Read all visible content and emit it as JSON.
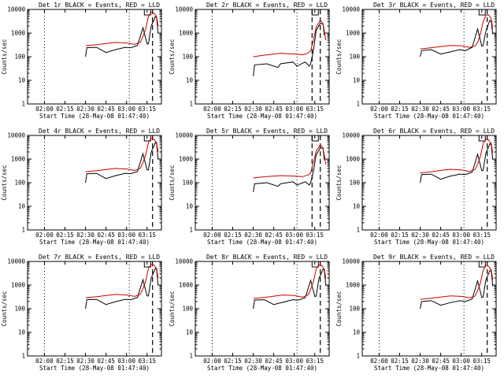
{
  "figure": {
    "background": "#ffffff",
    "event_color": "#000000",
    "lld_color": "#cc0000"
  },
  "chart_data": [
    {
      "type": "line",
      "detector": "Det 1r",
      "title": "Det 1r BLACK = Events, RED = LLD",
      "xlabel": "Start Time (28-May-08 01:47:40)",
      "ylabel": "Counts/sec",
      "yscale": "log",
      "ylim": [
        1,
        10000
      ],
      "xlim": [
        "01:47:40",
        "03:25:30"
      ],
      "x_ticks": [
        "02:00",
        "02:15",
        "02:30",
        "02:45",
        "03:00",
        "03:15"
      ],
      "y_ticks": [
        "1",
        "10",
        "100",
        "1000",
        "10000"
      ],
      "vertical_dotted_lines": [
        "02:00",
        "03:02"
      ],
      "vertical_dashed_lines": [
        "03:19"
      ],
      "series": [
        {
          "name": "Events",
          "color": "#000000",
          "x": [
            "02:30",
            "02:31",
            "02:38",
            "02:45",
            "02:52",
            "02:59",
            "03:03",
            "03:08",
            "03:12",
            "03:15",
            "03:16",
            "03:18",
            "03:20",
            "03:21",
            "03:22",
            "03:23"
          ],
          "y": [
            100,
            240,
            250,
            150,
            200,
            250,
            240,
            300,
            1700,
            350,
            350,
            2000,
            3500,
            5000,
            4500,
            1000
          ]
        },
        {
          "name": "LLD",
          "color": "#cc0000",
          "x": [
            "02:30",
            "02:38",
            "02:45",
            "02:52",
            "03:00",
            "03:06",
            "03:10",
            "03:12",
            "03:14",
            "03:16",
            "03:18",
            "03:20",
            "03:22",
            "03:23"
          ],
          "y": [
            290,
            320,
            360,
            400,
            380,
            330,
            400,
            700,
            1500,
            5000,
            7500,
            7000,
            5000,
            2000
          ]
        }
      ]
    },
    {
      "type": "line",
      "detector": "Det 2r",
      "title": "Det 2r BLACK = Events, RED = LLD",
      "xlabel": "Start Time (28-May-08 01:47:40)",
      "ylabel": "Counts/sec",
      "yscale": "log",
      "ylim": [
        1,
        10000
      ],
      "xlim": [
        "01:47:40",
        "03:25:30"
      ],
      "x_ticks": [
        "02:00",
        "02:15",
        "02:30",
        "02:45",
        "03:00",
        "03:15"
      ],
      "y_ticks": [
        "1",
        "10",
        "100",
        "1000",
        "10000"
      ],
      "vertical_dotted_lines": [
        "02:00",
        "03:02"
      ],
      "vertical_dashed_lines": [
        "03:13",
        "03:19"
      ],
      "series": [
        {
          "name": "Events",
          "color": "#000000",
          "x": [
            "02:30",
            "02:31",
            "02:40",
            "02:48",
            "02:50",
            "02:59",
            "03:02",
            "03:08",
            "03:11",
            "03:12",
            "03:14",
            "03:16",
            "03:19",
            "03:21",
            "03:22"
          ],
          "y": [
            15,
            45,
            50,
            35,
            50,
            60,
            40,
            60,
            40,
            50,
            180,
            1300,
            2600,
            2400,
            800
          ]
        },
        {
          "name": "LLD",
          "color": "#cc0000",
          "x": [
            "02:30",
            "02:40",
            "02:50",
            "03:00",
            "03:06",
            "03:10",
            "03:12",
            "03:14",
            "03:16",
            "03:19",
            "03:21",
            "03:22",
            "03:23"
          ],
          "y": [
            100,
            120,
            140,
            130,
            120,
            140,
            180,
            500,
            1800,
            3500,
            2500,
            1200,
            500
          ]
        }
      ]
    },
    {
      "type": "line",
      "detector": "Det 3r",
      "title": "Det 3r BLACK = Events, RED = LLD",
      "xlabel": "Start Time (28-May-08 01:47:40)",
      "ylabel": "Counts/sec",
      "yscale": "log",
      "ylim": [
        1,
        10000
      ],
      "xlim": [
        "01:47:40",
        "03:25:30"
      ],
      "x_ticks": [
        "02:00",
        "02:15",
        "02:30",
        "02:45",
        "03:00",
        "03:15"
      ],
      "y_ticks": [
        "1",
        "10",
        "100",
        "1000",
        "10000"
      ],
      "vertical_dotted_lines": [
        "02:00",
        "03:02"
      ],
      "vertical_dashed_lines": [
        "03:19"
      ],
      "series": [
        {
          "name": "Events",
          "color": "#000000",
          "x": [
            "02:30",
            "02:31",
            "02:38",
            "02:45",
            "02:52",
            "02:59",
            "03:03",
            "03:08",
            "03:12",
            "03:15",
            "03:16",
            "03:18",
            "03:20",
            "03:21",
            "03:22",
            "03:23"
          ],
          "y": [
            100,
            180,
            200,
            130,
            160,
            200,
            180,
            250,
            1500,
            280,
            300,
            1200,
            2500,
            3500,
            3000,
            900
          ]
        },
        {
          "name": "LLD",
          "color": "#cc0000",
          "x": [
            "02:30",
            "02:38",
            "02:45",
            "02:52",
            "03:00",
            "03:06",
            "03:10",
            "03:12",
            "03:14",
            "03:16",
            "03:18",
            "03:20",
            "03:22",
            "03:23"
          ],
          "y": [
            210,
            240,
            270,
            300,
            290,
            250,
            280,
            400,
            900,
            3000,
            5500,
            6000,
            4000,
            1500
          ]
        }
      ]
    },
    {
      "type": "line",
      "detector": "Det 4r",
      "title": "Det 4r BLACK = Events, RED = LLD",
      "xlabel": "Start Time (28-May-08 01:47:40)",
      "ylabel": "Counts/sec",
      "yscale": "log",
      "ylim": [
        1,
        10000
      ],
      "xlim": [
        "01:47:40",
        "03:25:30"
      ],
      "x_ticks": [
        "02:00",
        "02:15",
        "02:30",
        "02:45",
        "03:00",
        "03:15"
      ],
      "y_ticks": [
        "1",
        "10",
        "100",
        "1000",
        "10000"
      ],
      "vertical_dotted_lines": [
        "02:00",
        "03:02"
      ],
      "vertical_dashed_lines": [
        "03:19"
      ],
      "series": [
        {
          "name": "Events",
          "color": "#000000",
          "x": [
            "02:30",
            "02:31",
            "02:38",
            "02:45",
            "02:52",
            "02:59",
            "03:03",
            "03:08",
            "03:12",
            "03:15",
            "03:16",
            "03:18",
            "03:20",
            "03:21",
            "03:22",
            "03:23"
          ],
          "y": [
            100,
            240,
            250,
            150,
            200,
            250,
            240,
            300,
            1700,
            350,
            350,
            2000,
            3500,
            5000,
            4500,
            1000
          ]
        },
        {
          "name": "LLD",
          "color": "#cc0000",
          "x": [
            "02:30",
            "02:38",
            "02:45",
            "02:52",
            "03:00",
            "03:06",
            "03:10",
            "03:12",
            "03:14",
            "03:16",
            "03:18",
            "03:20",
            "03:22",
            "03:23"
          ],
          "y": [
            290,
            320,
            360,
            400,
            380,
            330,
            400,
            700,
            1500,
            5000,
            7500,
            7000,
            5000,
            2000
          ]
        }
      ]
    },
    {
      "type": "line",
      "detector": "Det 5r",
      "title": "Det 5r BLACK = Events, RED = LLD",
      "xlabel": "Start Time (28-May-08 01:47:40)",
      "ylabel": "Counts/sec",
      "yscale": "log",
      "ylim": [
        1,
        10000
      ],
      "xlim": [
        "01:47:40",
        "03:25:30"
      ],
      "x_ticks": [
        "02:00",
        "02:15",
        "02:30",
        "02:45",
        "03:00",
        "03:15"
      ],
      "y_ticks": [
        "1",
        "10",
        "100",
        "1000",
        "10000"
      ],
      "vertical_dotted_lines": [
        "02:00",
        "03:02"
      ],
      "vertical_dashed_lines": [
        "03:13",
        "03:19"
      ],
      "series": [
        {
          "name": "Events",
          "color": "#000000",
          "x": [
            "02:30",
            "02:31",
            "02:40",
            "02:48",
            "02:50",
            "02:59",
            "03:02",
            "03:08",
            "03:11",
            "03:12",
            "03:14",
            "03:16",
            "03:19",
            "03:21",
            "03:22"
          ],
          "y": [
            40,
            90,
            100,
            70,
            90,
            110,
            80,
            110,
            80,
            100,
            300,
            1500,
            3000,
            2800,
            900
          ]
        },
        {
          "name": "LLD",
          "color": "#cc0000",
          "x": [
            "02:30",
            "02:40",
            "02:50",
            "03:00",
            "03:06",
            "03:10",
            "03:12",
            "03:14",
            "03:16",
            "03:19",
            "03:21",
            "03:22",
            "03:23"
          ],
          "y": [
            160,
            180,
            200,
            190,
            180,
            210,
            260,
            700,
            2200,
            4000,
            3000,
            1400,
            600
          ]
        }
      ]
    },
    {
      "type": "line",
      "detector": "Det 6r",
      "title": "Det 6r BLACK = Events, RED = LLD",
      "xlabel": "Start Time (28-May-08 01:47:40)",
      "ylabel": "Counts/sec",
      "yscale": "log",
      "ylim": [
        1,
        10000
      ],
      "xlim": [
        "01:47:40",
        "03:25:30"
      ],
      "x_ticks": [
        "02:00",
        "02:15",
        "02:30",
        "02:45",
        "03:00",
        "03:15"
      ],
      "y_ticks": [
        "1",
        "10",
        "100",
        "1000",
        "10000"
      ],
      "vertical_dotted_lines": [
        "02:00",
        "03:02"
      ],
      "vertical_dashed_lines": [
        "03:19"
      ],
      "series": [
        {
          "name": "Events",
          "color": "#000000",
          "x": [
            "02:30",
            "02:31",
            "02:38",
            "02:45",
            "02:52",
            "02:59",
            "03:03",
            "03:08",
            "03:12",
            "03:15",
            "03:16",
            "03:18",
            "03:20",
            "03:21",
            "03:22",
            "03:23"
          ],
          "y": [
            100,
            220,
            230,
            140,
            190,
            230,
            220,
            280,
            1600,
            320,
            330,
            1800,
            3200,
            4500,
            4000,
            950
          ]
        },
        {
          "name": "LLD",
          "color": "#cc0000",
          "x": [
            "02:30",
            "02:38",
            "02:45",
            "02:52",
            "03:00",
            "03:06",
            "03:10",
            "03:12",
            "03:14",
            "03:16",
            "03:18",
            "03:20",
            "03:22",
            "03:23"
          ],
          "y": [
            260,
            290,
            330,
            370,
            350,
            300,
            360,
            600,
            1300,
            4500,
            7000,
            6500,
            4500,
            1800
          ]
        }
      ]
    },
    {
      "type": "line",
      "detector": "Det 7r",
      "title": "Det 7r BLACK = Events, RED = LLD",
      "xlabel": "Start Time (28-May-08 01:47:40)",
      "ylabel": "Counts/sec",
      "yscale": "log",
      "ylim": [
        1,
        10000
      ],
      "xlim": [
        "01:47:40",
        "03:25:30"
      ],
      "x_ticks": [
        "02:00",
        "02:15",
        "02:30",
        "02:45",
        "03:00",
        "03:15"
      ],
      "y_ticks": [
        "1",
        "10",
        "100",
        "1000",
        "10000"
      ],
      "vertical_dotted_lines": [
        "02:00",
        "03:02"
      ],
      "vertical_dashed_lines": [
        "03:19"
      ],
      "series": [
        {
          "name": "Events",
          "color": "#000000",
          "x": [
            "02:30",
            "02:31",
            "02:38",
            "02:45",
            "02:52",
            "02:59",
            "03:03",
            "03:08",
            "03:12",
            "03:15",
            "03:16",
            "03:18",
            "03:20",
            "03:21",
            "03:22",
            "03:23"
          ],
          "y": [
            100,
            240,
            250,
            150,
            200,
            250,
            240,
            300,
            1700,
            350,
            350,
            2000,
            3500,
            5000,
            4500,
            1000
          ]
        },
        {
          "name": "LLD",
          "color": "#cc0000",
          "x": [
            "02:30",
            "02:38",
            "02:45",
            "02:52",
            "03:00",
            "03:06",
            "03:10",
            "03:12",
            "03:14",
            "03:16",
            "03:18",
            "03:20",
            "03:22",
            "03:23"
          ],
          "y": [
            290,
            320,
            360,
            400,
            380,
            330,
            400,
            700,
            1500,
            5000,
            7500,
            7000,
            5000,
            2000
          ]
        }
      ]
    },
    {
      "type": "line",
      "detector": "Det 8r",
      "title": "Det 8r BLACK = Events, RED = LLD",
      "xlabel": "Start Time (28-May-08 01:47:40)",
      "ylabel": "Counts/sec",
      "yscale": "log",
      "ylim": [
        1,
        10000
      ],
      "xlim": [
        "01:47:40",
        "03:25:30"
      ],
      "x_ticks": [
        "02:00",
        "02:15",
        "02:30",
        "02:45",
        "03:00",
        "03:15"
      ],
      "y_ticks": [
        "1",
        "10",
        "100",
        "1000",
        "10000"
      ],
      "vertical_dotted_lines": [
        "02:00",
        "03:02"
      ],
      "vertical_dashed_lines": [
        "03:19"
      ],
      "series": [
        {
          "name": "Events",
          "color": "#000000",
          "x": [
            "02:30",
            "02:31",
            "02:38",
            "02:45",
            "02:52",
            "02:59",
            "03:03",
            "03:08",
            "03:12",
            "03:15",
            "03:16",
            "03:18",
            "03:20",
            "03:21",
            "03:22",
            "03:23"
          ],
          "y": [
            100,
            230,
            240,
            150,
            190,
            240,
            230,
            290,
            1600,
            330,
            340,
            1900,
            3300,
            4700,
            4200,
            950
          ]
        },
        {
          "name": "LLD",
          "color": "#cc0000",
          "x": [
            "02:30",
            "02:38",
            "02:45",
            "02:52",
            "03:00",
            "03:06",
            "03:10",
            "03:12",
            "03:14",
            "03:16",
            "03:18",
            "03:20",
            "03:22",
            "03:23"
          ],
          "y": [
            270,
            300,
            340,
            380,
            360,
            310,
            380,
            650,
            1400,
            4800,
            7200,
            6800,
            4800,
            1900
          ]
        }
      ]
    },
    {
      "type": "line",
      "detector": "Det 9r",
      "title": "Det 9r BLACK = Events, RED = LLD",
      "xlabel": "Start Time (28-May-08 01:47:40)",
      "ylabel": "Counts/sec",
      "yscale": "log",
      "ylim": [
        1,
        10000
      ],
      "xlim": [
        "01:47:40",
        "03:25:30"
      ],
      "x_ticks": [
        "02:00",
        "02:15",
        "02:30",
        "02:45",
        "03:00",
        "03:15"
      ],
      "y_ticks": [
        "1",
        "10",
        "100",
        "1000",
        "10000"
      ],
      "vertical_dotted_lines": [
        "02:00",
        "03:02"
      ],
      "vertical_dashed_lines": [
        "03:19"
      ],
      "series": [
        {
          "name": "Events",
          "color": "#000000",
          "x": [
            "02:30",
            "02:31",
            "02:38",
            "02:45",
            "02:52",
            "02:59",
            "03:03",
            "03:08",
            "03:12",
            "03:15",
            "03:16",
            "03:18",
            "03:20",
            "03:21",
            "03:22",
            "03:23"
          ],
          "y": [
            100,
            200,
            220,
            140,
            180,
            220,
            200,
            260,
            1500,
            300,
            310,
            1700,
            3000,
            4200,
            3800,
            900
          ]
        },
        {
          "name": "LLD",
          "color": "#cc0000",
          "x": [
            "02:30",
            "02:38",
            "02:45",
            "02:52",
            "03:00",
            "03:06",
            "03:10",
            "03:12",
            "03:14",
            "03:16",
            "03:18",
            "03:20",
            "03:22",
            "03:23"
          ],
          "y": [
            250,
            280,
            310,
            350,
            330,
            290,
            340,
            580,
            1200,
            4200,
            6800,
            6300,
            4300,
            1700
          ]
        }
      ]
    }
  ]
}
